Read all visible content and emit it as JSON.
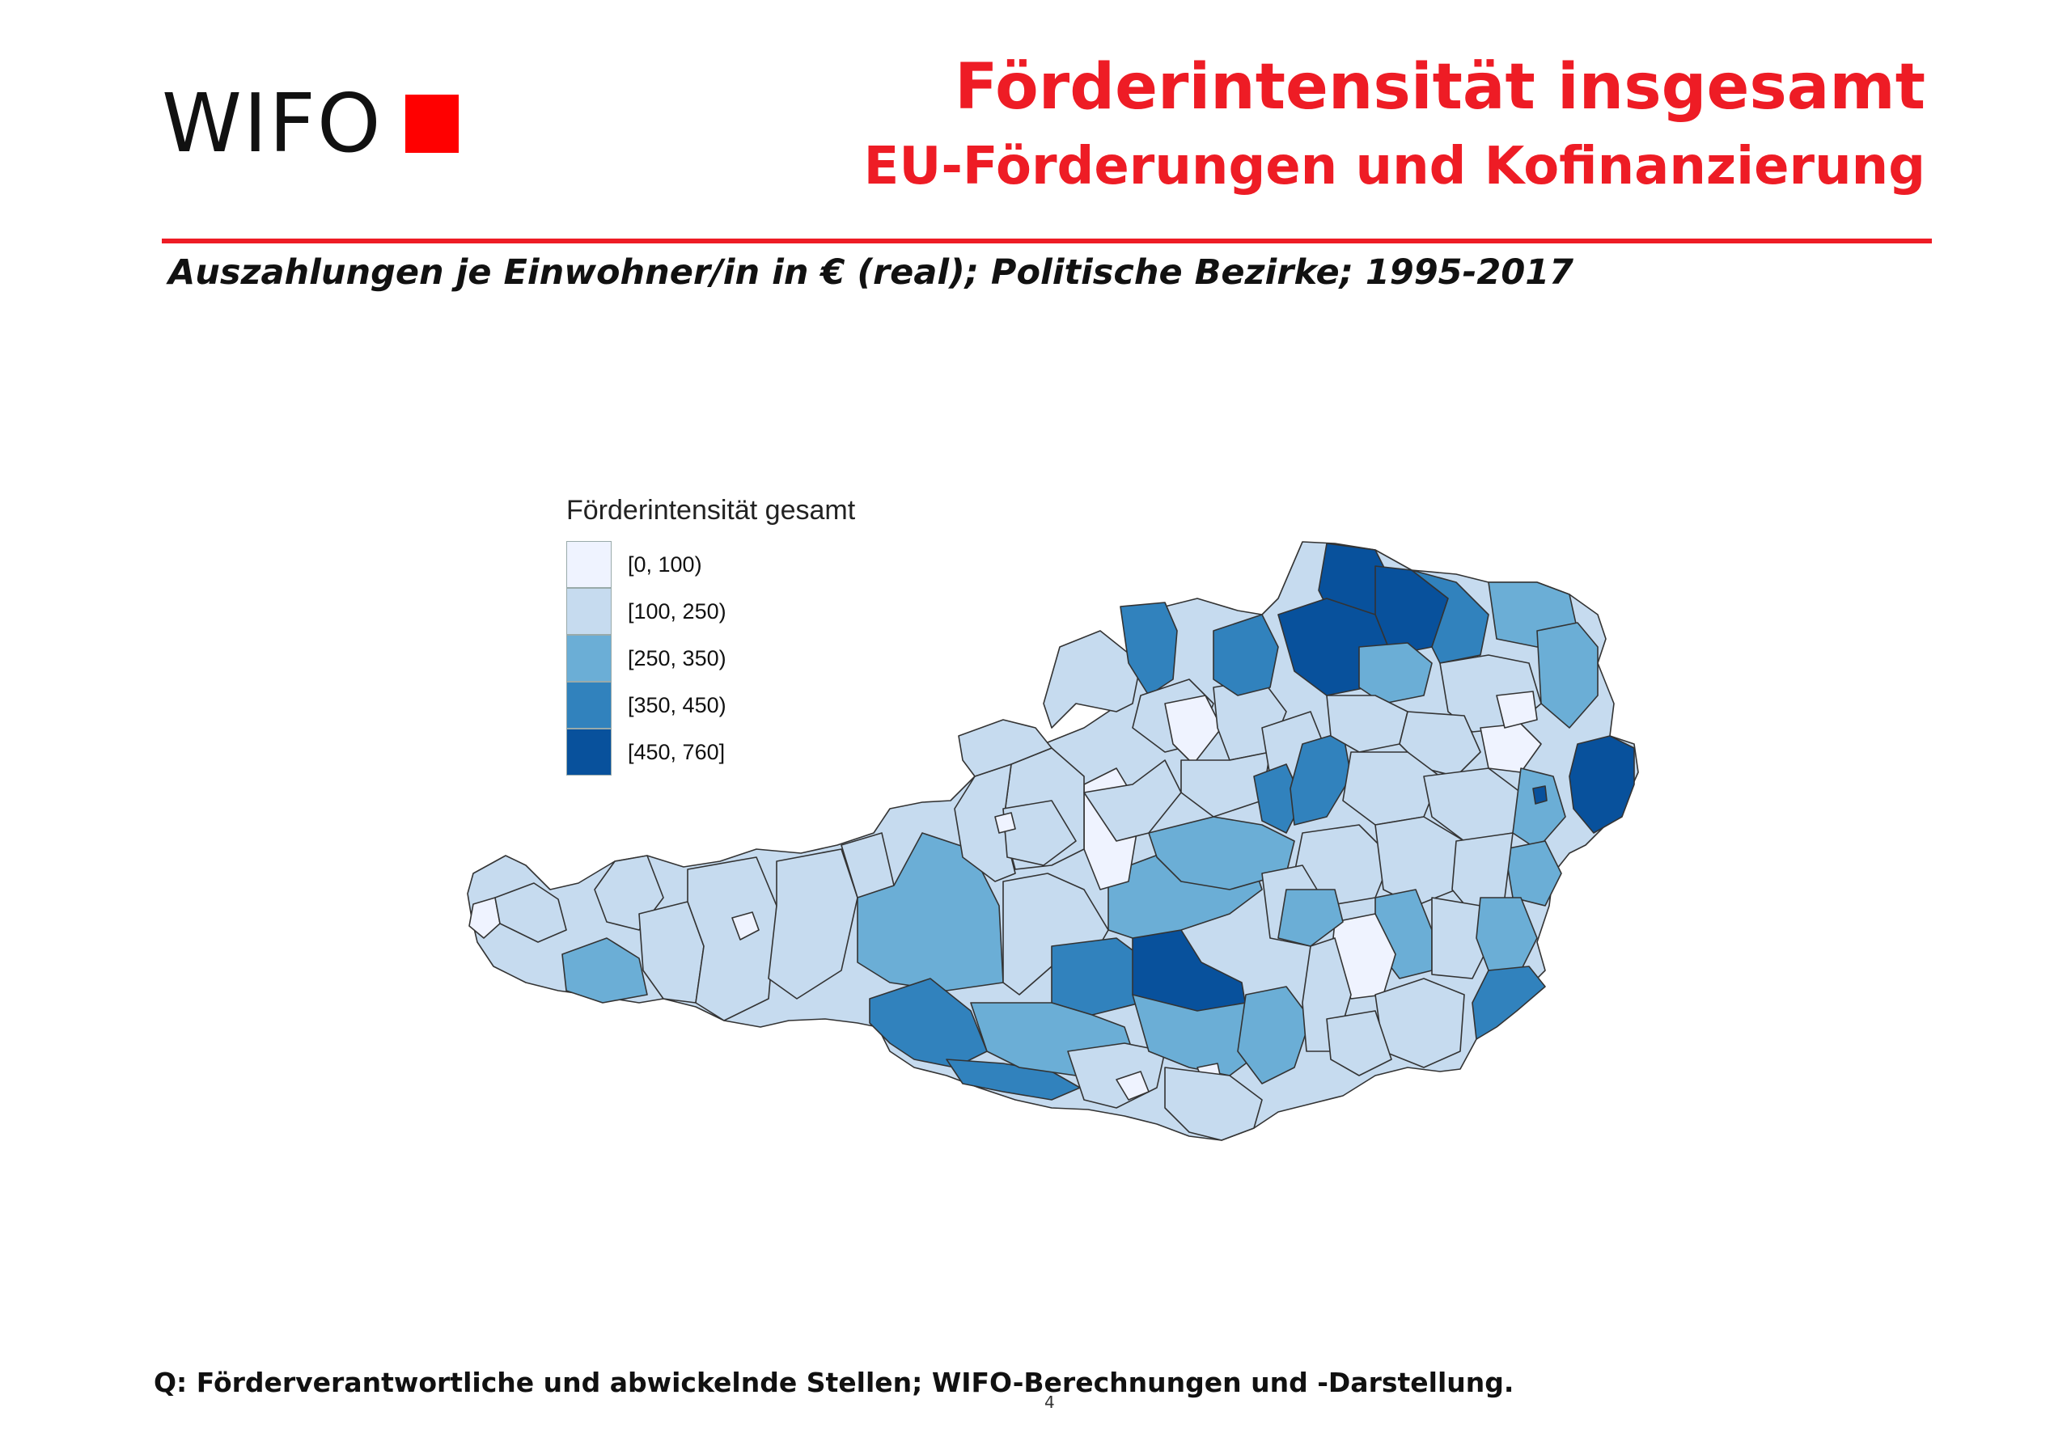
{
  "header": {
    "logo_text": "WIFO",
    "title_line1": "Förderintensität insgesamt",
    "title_line2": "EU-Förderungen und Kofinanzierung",
    "subtitle": "Auszahlungen je Einwohner/in in € (real); Politische Bezirke; 1995-2017"
  },
  "colors": {
    "accent": "#ee1c25",
    "logo_square": "#ff0000",
    "class0": "#eff3ff",
    "class1": "#c6dbef",
    "class2": "#6baed6",
    "class3": "#3182bd",
    "class4": "#08519c"
  },
  "legend": {
    "title": "Förderintensität gesamt",
    "items": [
      {
        "label": "[0, 100)",
        "color": "#eff3ff"
      },
      {
        "label": "[100, 250)",
        "color": "#c6dbef"
      },
      {
        "label": "[250, 350)",
        "color": "#6baed6"
      },
      {
        "label": "[350, 450)",
        "color": "#3182bd"
      },
      {
        "label": "[450, 760]",
        "color": "#08519c"
      }
    ]
  },
  "footer": {
    "source": "Q: Förderverantwortliche und abwickelnde Stellen; WIFO-Berechnungen und -Darstellung.",
    "page": "4"
  }
}
